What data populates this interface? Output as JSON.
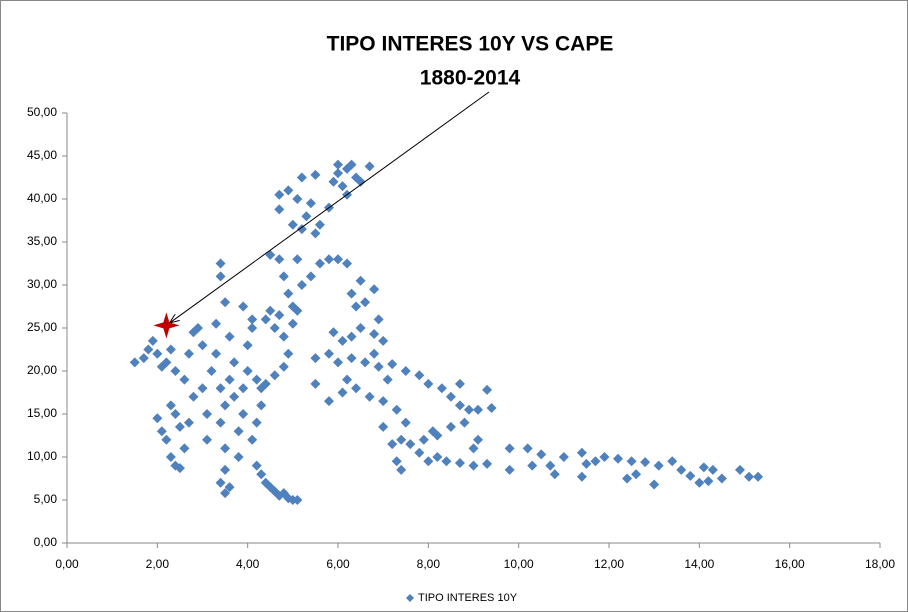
{
  "chart_data": {
    "type": "scatter",
    "title": "TIPO INTERES 10Y VS CAPE",
    "subtitle": "1880-2014",
    "xlim": [
      0,
      18
    ],
    "xticks": [
      {
        "value": 0,
        "label": "0,00"
      },
      {
        "value": 2,
        "label": "2,00"
      },
      {
        "value": 4,
        "label": "4,00"
      },
      {
        "value": 6,
        "label": "6,00"
      },
      {
        "value": 8,
        "label": "8,00"
      },
      {
        "value": 10,
        "label": "10,00"
      },
      {
        "value": 12,
        "label": "12,00"
      },
      {
        "value": 14,
        "label": "14,00"
      },
      {
        "value": 16,
        "label": "16,00"
      },
      {
        "value": 18,
        "label": "18,00"
      }
    ],
    "ylim": [
      0,
      50
    ],
    "yticks": [
      {
        "value": 0,
        "label": "0,00"
      },
      {
        "value": 5,
        "label": "5,00"
      },
      {
        "value": 10,
        "label": "10,00"
      },
      {
        "value": 15,
        "label": "15,00"
      },
      {
        "value": 20,
        "label": "20,00"
      },
      {
        "value": 25,
        "label": "25,00"
      },
      {
        "value": 30,
        "label": "30,00"
      },
      {
        "value": 35,
        "label": "35,00"
      },
      {
        "value": 40,
        "label": "40,00"
      },
      {
        "value": 45,
        "label": "45,00"
      },
      {
        "value": 50,
        "label": "50,00"
      }
    ],
    "grid": false,
    "legend": "bottom",
    "highlight": {
      "x": 2.2,
      "y": 25.3,
      "color": "#c00000"
    },
    "series": [
      {
        "name": "TIPO INTERES 10Y",
        "color": "#4f81bd",
        "x": [
          1.5,
          1.7,
          1.8,
          1.9,
          2.0,
          2.1,
          2.2,
          2.3,
          2.4,
          2.0,
          2.1,
          2.2,
          2.3,
          2.4,
          2.5,
          2.3,
          2.4,
          2.5,
          2.6,
          2.7,
          2.8,
          2.6,
          2.7,
          2.8,
          2.9,
          3.0,
          3.0,
          3.1,
          3.1,
          3.2,
          3.3,
          3.3,
          3.4,
          3.4,
          3.5,
          3.5,
          3.5,
          3.4,
          3.5,
          3.6,
          3.6,
          3.6,
          3.7,
          3.7,
          3.8,
          3.8,
          3.9,
          3.9,
          4.0,
          4.0,
          4.1,
          4.1,
          4.2,
          4.2,
          4.3,
          4.3,
          4.4,
          4.5,
          4.6,
          4.7,
          4.8,
          4.9,
          5.0,
          5.1,
          4.4,
          4.5,
          4.6,
          4.7,
          4.8,
          4.9,
          5.0,
          5.1,
          3.4,
          3.4,
          3.5,
          3.9,
          4.1,
          4.2,
          4.3,
          4.4,
          4.6,
          4.8,
          4.5,
          4.7,
          4.8,
          4.9,
          5.0,
          4.7,
          4.7,
          4.9,
          5.0,
          5.2,
          5.3,
          5.4,
          5.5,
          5.2,
          5.5,
          5.1,
          5.6,
          5.8,
          5.9,
          6.0,
          6.1,
          6.0,
          6.2,
          6.3,
          6.5,
          6.7,
          6.4,
          6.2,
          5.8,
          5.6,
          5.4,
          5.2,
          5.1,
          6.0,
          6.2,
          6.3,
          6.4,
          6.5,
          6.6,
          6.8,
          6.9,
          6.5,
          6.3,
          6.1,
          5.9,
          6.8,
          7.0,
          5.5,
          5.8,
          6.0,
          6.3,
          6.6,
          6.9,
          7.2,
          7.5,
          7.8,
          8.0,
          8.3,
          8.5,
          8.7,
          8.9,
          9.1,
          9.4,
          9.3,
          8.7,
          5.5,
          5.8,
          6.1,
          6.4,
          6.7,
          7.0,
          7.3,
          7.5,
          7.4,
          7.6,
          7.8,
          8.0,
          8.2,
          8.4,
          8.7,
          9.0,
          9.3,
          7.0,
          7.2,
          7.3,
          7.4,
          7.9,
          8.1,
          8.5,
          8.8,
          9.1,
          9.0,
          8.2,
          6.2,
          6.8,
          7.1,
          9.8,
          9.8,
          10.2,
          10.5,
          10.3,
          10.7,
          10.8,
          11.0,
          11.4,
          11.5,
          11.7,
          11.4,
          11.9,
          12.2,
          12.5,
          12.8,
          12.6,
          12.4,
          13.0,
          13.1,
          13.4,
          13.6,
          13.8,
          14.0,
          14.2,
          14.3,
          14.5,
          14.1,
          14.9,
          15.1,
          15.3
        ],
        "values": [
          21,
          21.5,
          22.5,
          23.5,
          22,
          20.5,
          21,
          22.5,
          20,
          14.5,
          13,
          12,
          16,
          15,
          13.5,
          10,
          9,
          8.7,
          11,
          14,
          17,
          19,
          22,
          24.5,
          25,
          23,
          18,
          15,
          12,
          20,
          22,
          25.5,
          18,
          14,
          16,
          11,
          8.5,
          7,
          5.8,
          6.5,
          19,
          24,
          21,
          17,
          13,
          10,
          15,
          18,
          20,
          23,
          25,
          12,
          9,
          14,
          16,
          8,
          7,
          6.5,
          6,
          5.5,
          5.8,
          5.2,
          5,
          5,
          26,
          27,
          25,
          26.5,
          24,
          22,
          25.5,
          27,
          32.5,
          31,
          28,
          27.5,
          26,
          19,
          18,
          18.5,
          19.5,
          20.5,
          33.5,
          33,
          31,
          29,
          27.5,
          38.8,
          40.5,
          41,
          37,
          36.5,
          38,
          39.5,
          36,
          42.5,
          42.8,
          40,
          37,
          39,
          42,
          43,
          41.5,
          44,
          43.5,
          44,
          42,
          43.8,
          42.5,
          40.5,
          33,
          32.5,
          31,
          30,
          33,
          33,
          32.5,
          29,
          27.5,
          30.5,
          28,
          29.5,
          26,
          25,
          24,
          23.5,
          24.5,
          24.3,
          23.5,
          21.5,
          22,
          21,
          21.5,
          21,
          20.5,
          20.8,
          20,
          19.5,
          18.5,
          18,
          17,
          16,
          15.5,
          15.5,
          15.7,
          17.8,
          18.5,
          18.5,
          16.5,
          17.5,
          18,
          17,
          16.5,
          15.5,
          14,
          12,
          11.5,
          10.5,
          9.5,
          10,
          9.5,
          9.3,
          9,
          9.2,
          13.5,
          11.5,
          9.5,
          8.5,
          12,
          13,
          13.5,
          14,
          12,
          11,
          12.5,
          19,
          22,
          19,
          8.5,
          11,
          11,
          10.3,
          9,
          9,
          8,
          10,
          10.5,
          9.2,
          9.5,
          7.7,
          10,
          9.8,
          9.5,
          9.4,
          8,
          7.5,
          6.8,
          9,
          9.5,
          8.5,
          7.8,
          7,
          7.2,
          8.5,
          7.5,
          8.8,
          8.5,
          7.7,
          7.7
        ]
      }
    ]
  }
}
